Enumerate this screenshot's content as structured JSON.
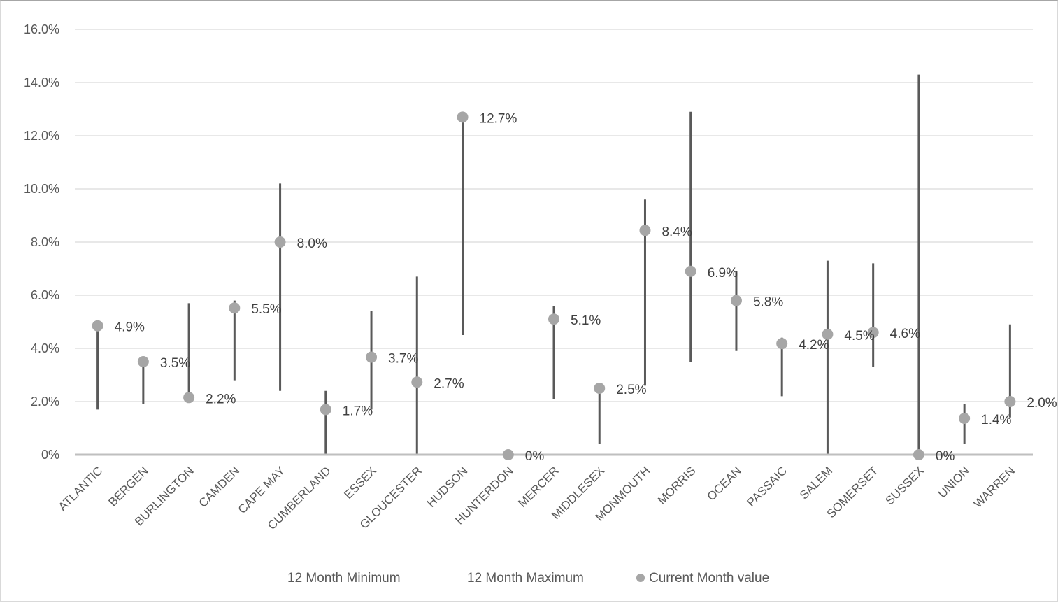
{
  "chart_data": {
    "type": "scatter",
    "title": "",
    "xlabel": "",
    "ylabel": "",
    "ylim": [
      0,
      16
    ],
    "y_ticks": [
      "0%",
      "2.0%",
      "4.0%",
      "6.0%",
      "8.0%",
      "10.0%",
      "12.0%",
      "14.0%",
      "16.0%"
    ],
    "grid": true,
    "legend_position": "bottom",
    "categories": [
      "ATLANTIC",
      "BERGEN",
      "BURLINGTON",
      "CAMDEN",
      "CAPE MAY",
      "CUMBERLAND",
      "ESSEX",
      "GLOUCESTER",
      "HUDSON",
      "HUNTERDON",
      "MERCER",
      "MIDDLESEX",
      "MONMOUTH",
      "MORRIS",
      "OCEAN",
      "PASSAIC",
      "SALEM",
      "SOMERSET",
      "SUSSEX",
      "UNION",
      "WARREN"
    ],
    "series": [
      {
        "name": "12 Month Minimum",
        "values": [
          1.7,
          1.9,
          2.2,
          2.8,
          2.4,
          0.0,
          1.7,
          0.0,
          4.5,
          0.0,
          2.1,
          0.4,
          2.6,
          3.5,
          3.9,
          2.2,
          0.0,
          3.3,
          0.0,
          0.4,
          1.4
        ]
      },
      {
        "name": "12 Month Maximum",
        "values": [
          4.9,
          3.5,
          5.7,
          5.8,
          10.2,
          2.4,
          5.4,
          6.7,
          12.7,
          0.0,
          5.6,
          2.5,
          9.6,
          12.9,
          6.9,
          4.4,
          7.3,
          7.2,
          14.3,
          1.9,
          4.9
        ]
      },
      {
        "name": "Current Month value",
        "values": [
          4.85,
          3.5,
          2.15,
          5.52,
          8.0,
          1.7,
          3.67,
          2.73,
          12.7,
          0.0,
          5.1,
          2.5,
          8.44,
          6.9,
          5.8,
          4.18,
          4.53,
          4.6,
          0.0,
          1.37,
          2.0
        ]
      }
    ],
    "data_labels": [
      "4.9%",
      "3.5%",
      "2.2%",
      "5.5%",
      "8.0%",
      "1.7%",
      "3.7%",
      "2.7%",
      "12.7%",
      "0%",
      "5.1%",
      "2.5%",
      "8.4%",
      "6.9%",
      "5.8%",
      "4.2%",
      "4.5%",
      "4.6%",
      "0%",
      "1.4%",
      "2.0%"
    ],
    "colors": {
      "range_line": "#595959",
      "marker": "#a6a6a6",
      "grid": "#d9d9d9",
      "axis": "#bfbfbf"
    }
  }
}
